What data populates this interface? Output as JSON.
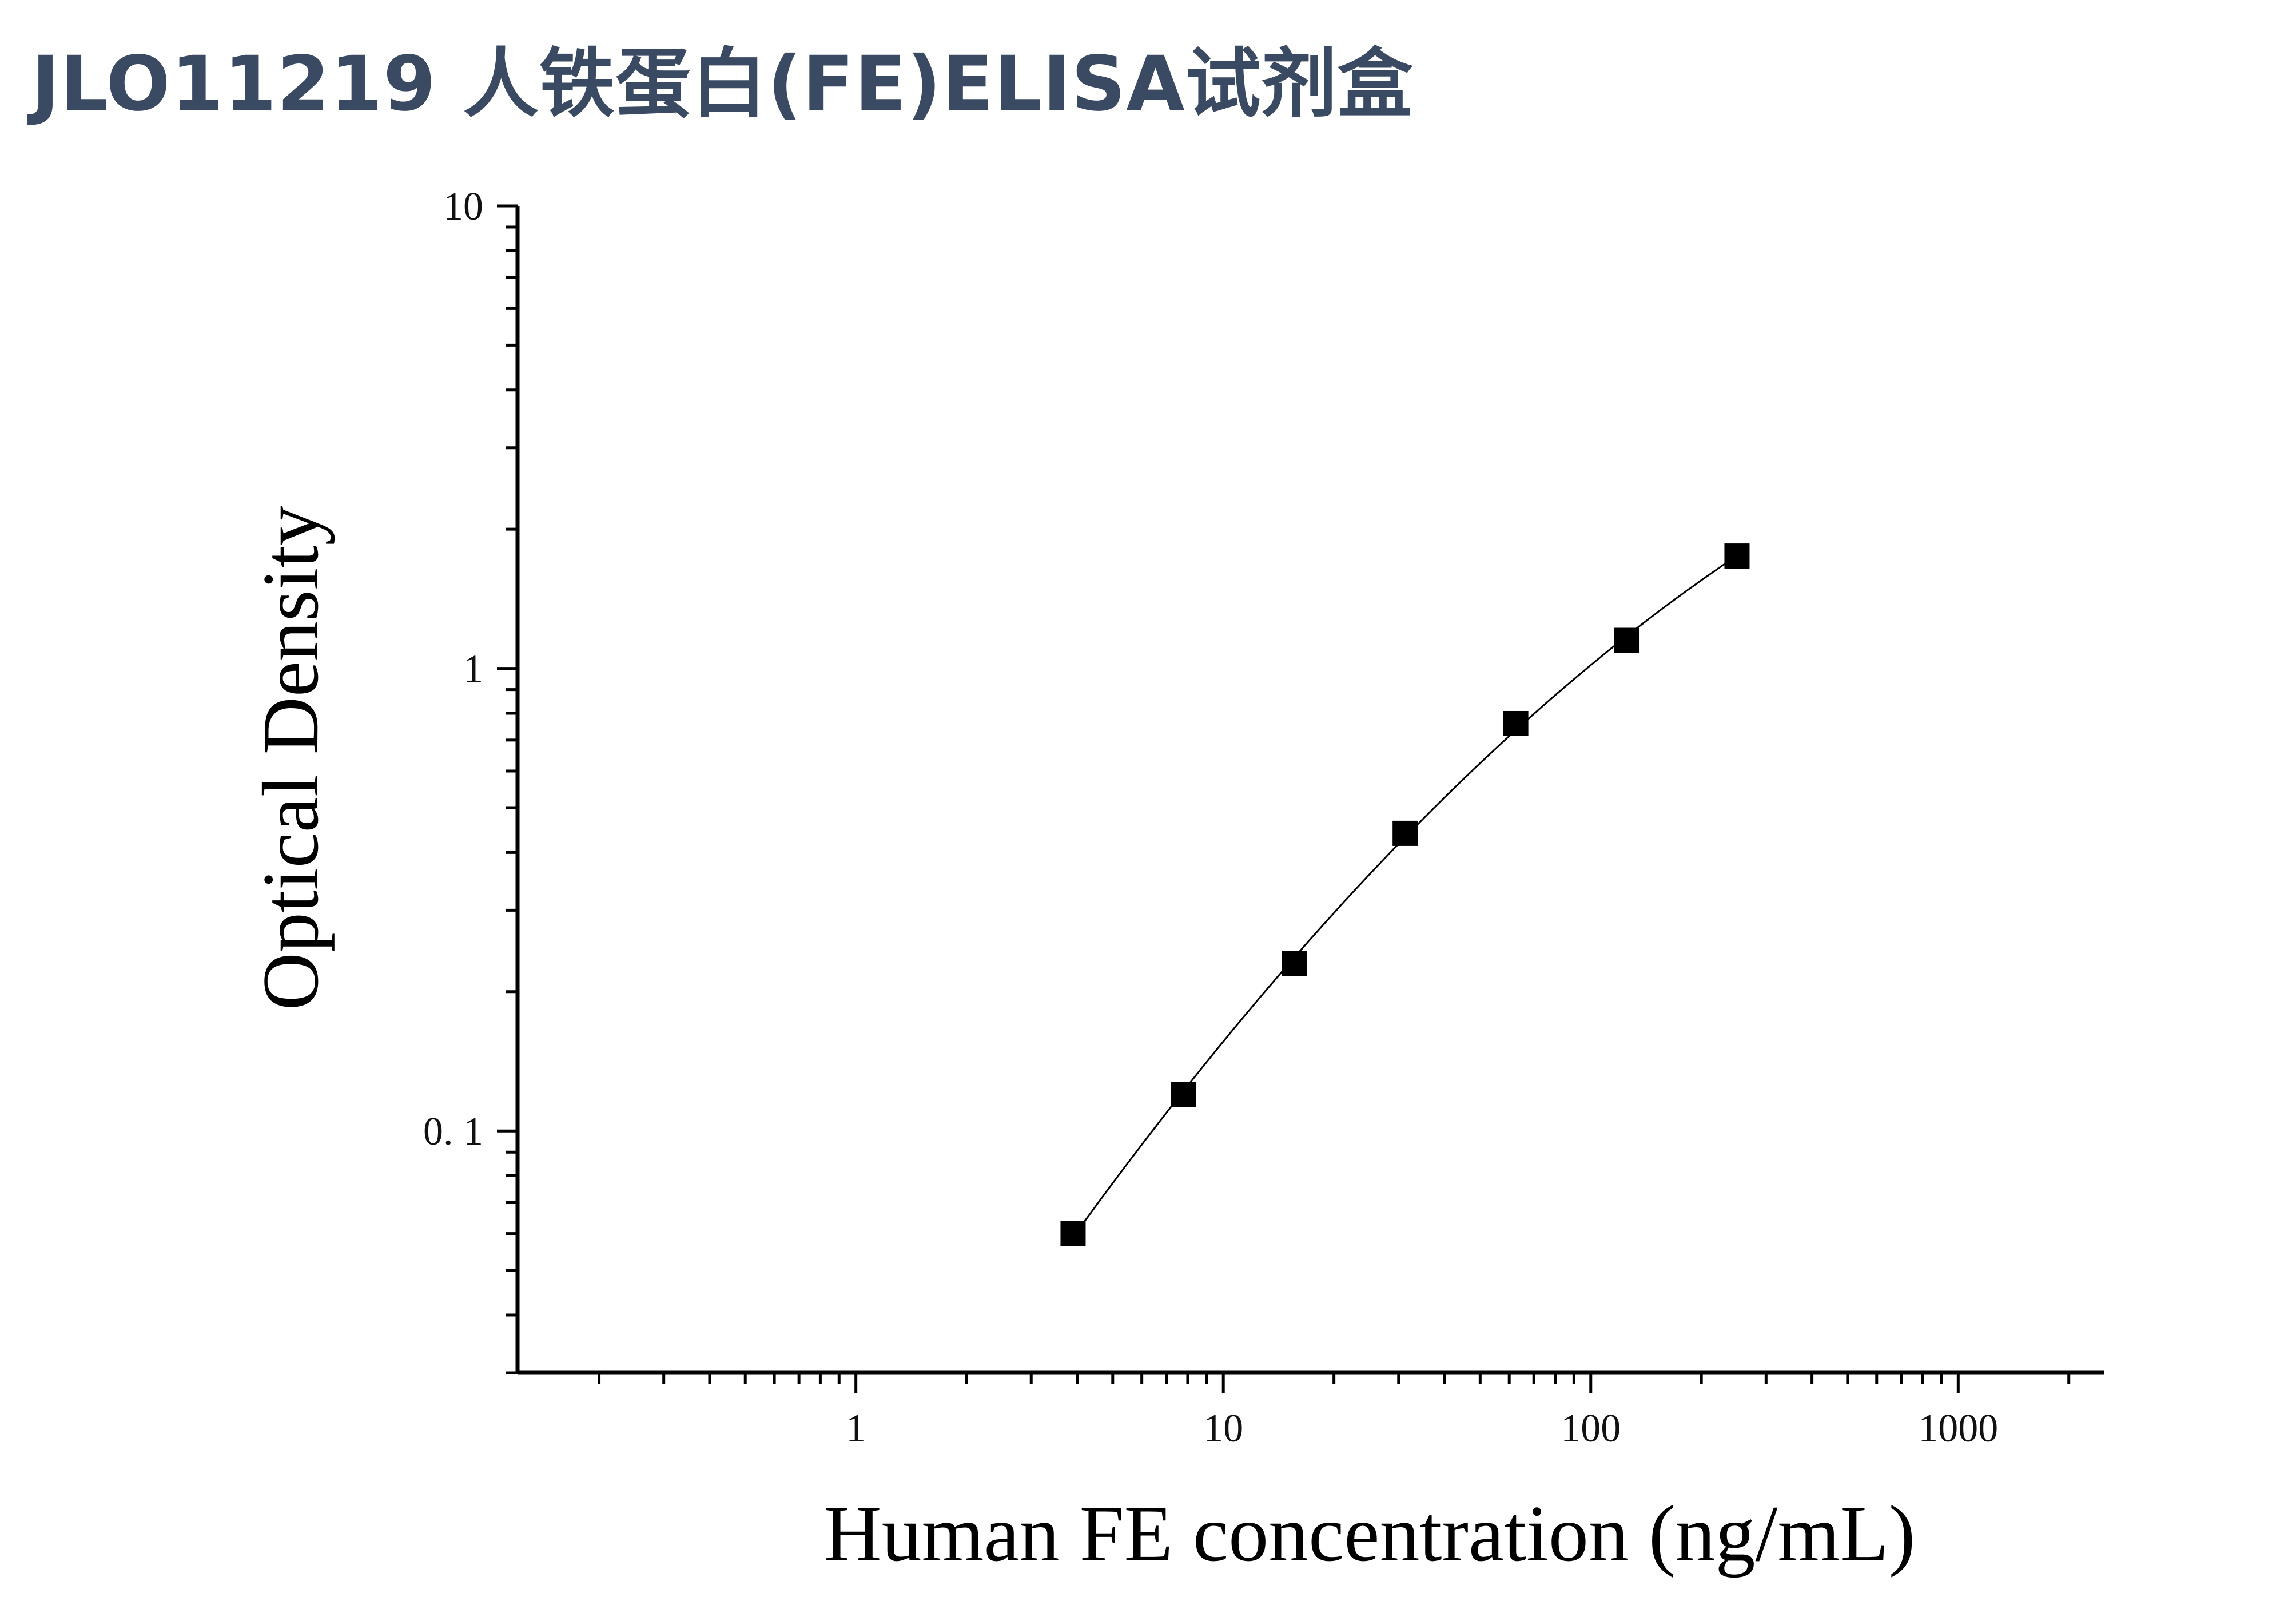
{
  "title": "JLO11219 人铁蛋白(FE)ELISA试剂盒",
  "colors": {
    "title": "#3b4a63",
    "axis": "#000000",
    "marker": "#000000",
    "curve": "#000000"
  },
  "chart_data": {
    "type": "scatter",
    "title": "",
    "xlabel": "Human FE concentration (ng/mL)",
    "ylabel": "Optical Density",
    "xscale": "log",
    "yscale": "log",
    "xlim": [
      0.12,
      2500
    ],
    "ylim": [
      0.03,
      10
    ],
    "xticks": [
      1,
      10,
      100,
      1000
    ],
    "xtick_labels": [
      "1",
      "10",
      "100",
      "1000"
    ],
    "yticks": [
      0.1,
      1,
      10
    ],
    "ytick_labels": [
      "0. 1",
      "1",
      "10"
    ],
    "grid": false,
    "legend": "none",
    "marker": "square",
    "series": [
      {
        "x": [
          3.9,
          7.8,
          15.6,
          31.25,
          62.5,
          125,
          250
        ],
        "y": [
          0.06,
          0.12,
          0.23,
          0.44,
          0.76,
          1.15,
          1.75
        ]
      }
    ],
    "fit_curve": {
      "type": "smooth",
      "x_range": [
        3.9,
        250
      ]
    }
  }
}
